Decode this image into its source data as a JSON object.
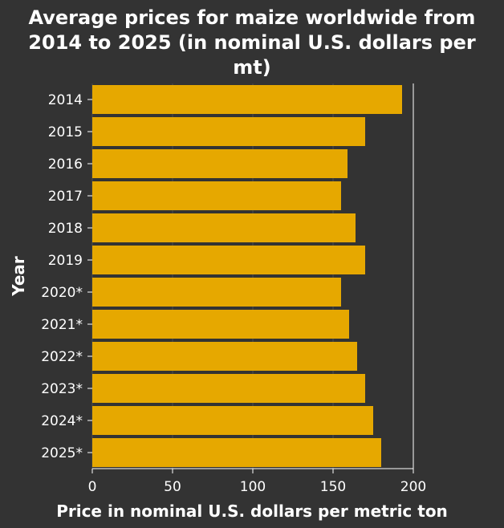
{
  "colors": {
    "background": "#333333",
    "plot_background": "#333333",
    "bar": "#e6a800",
    "grid": "#4d4d4d",
    "text": "#ffffff",
    "axis": "#ffffff"
  },
  "chart_data": {
    "type": "bar",
    "orientation": "horizontal",
    "title_lines": [
      "Average prices for maize worldwide from",
      "2014 to 2025 (in nominal U.S. dollars per",
      "mt)"
    ],
    "xlabel": "Price in nominal U.S. dollars per metric ton",
    "ylabel": "Year",
    "categories": [
      "2014",
      "2015",
      "2016",
      "2017",
      "2018",
      "2019",
      "2020*",
      "2021*",
      "2022*",
      "2023*",
      "2024*",
      "2025*"
    ],
    "values": [
      193,
      170,
      159,
      155,
      164,
      170,
      155,
      160,
      165,
      170,
      175,
      180
    ],
    "xlim": [
      0,
      200
    ],
    "x_ticks": [
      0,
      50,
      100,
      150,
      200
    ],
    "grid": true,
    "legend": "none"
  }
}
